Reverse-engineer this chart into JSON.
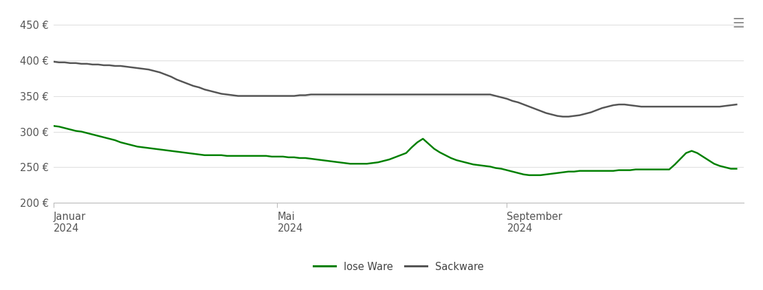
{
  "ylim": [
    200,
    460
  ],
  "yticks": [
    200,
    250,
    300,
    350,
    400,
    450
  ],
  "ytick_labels": [
    "200 €",
    "250 €",
    "300 €",
    "350 €",
    "400 €",
    "450 €"
  ],
  "lose_ware_color": "#008000",
  "sackware_color": "#555555",
  "background_color": "#ffffff",
  "grid_color": "#e0e0e0",
  "legend_labels": [
    "lose Ware",
    "Sackware"
  ],
  "lose_ware_x": [
    0,
    3,
    6,
    9,
    12,
    15,
    18,
    21,
    24,
    27,
    30,
    33,
    36,
    39,
    42,
    45,
    48,
    51,
    54,
    57,
    60,
    63,
    66,
    69,
    72,
    75,
    78,
    81,
    84,
    87,
    90,
    93,
    96,
    99,
    102,
    105,
    108,
    111,
    114,
    117,
    120,
    123,
    126,
    129,
    132,
    135,
    138,
    141,
    144,
    147,
    150,
    153,
    156,
    159,
    162,
    165,
    168,
    171,
    174,
    177,
    180,
    183,
    186,
    189,
    192,
    195,
    198,
    201,
    204,
    207,
    210,
    213,
    216,
    219,
    222,
    225,
    228,
    231,
    234,
    237,
    240,
    243,
    246,
    249,
    252,
    255,
    258,
    261,
    264,
    267,
    270,
    273,
    276,
    279,
    282,
    285,
    288,
    291,
    294,
    297,
    300,
    303,
    306,
    309,
    312,
    315,
    318,
    321,
    324,
    327,
    330,
    333,
    336,
    339,
    342,
    345,
    348,
    351,
    354,
    357,
    360,
    363,
    366
  ],
  "lose_ware_y": [
    308,
    307,
    305,
    303,
    301,
    300,
    298,
    296,
    294,
    292,
    290,
    288,
    285,
    283,
    281,
    279,
    278,
    277,
    276,
    275,
    274,
    273,
    272,
    271,
    270,
    269,
    268,
    267,
    267,
    267,
    267,
    266,
    266,
    266,
    266,
    266,
    266,
    266,
    266,
    265,
    265,
    265,
    264,
    264,
    263,
    263,
    262,
    261,
    260,
    259,
    258,
    257,
    256,
    255,
    255,
    255,
    255,
    256,
    257,
    259,
    261,
    264,
    267,
    270,
    278,
    285,
    290,
    283,
    276,
    271,
    267,
    263,
    260,
    258,
    256,
    254,
    253,
    252,
    251,
    249,
    248,
    246,
    244,
    242,
    240,
    239,
    239,
    239,
    240,
    241,
    242,
    243,
    244,
    244,
    245,
    245,
    245,
    245,
    245,
    245,
    245,
    246,
    246,
    246,
    247,
    247,
    247,
    247,
    247,
    247,
    247,
    254,
    262,
    270,
    273,
    270,
    265,
    260,
    255,
    252,
    250,
    248,
    248
  ],
  "sackware_x": [
    0,
    3,
    6,
    9,
    12,
    15,
    18,
    21,
    24,
    27,
    30,
    33,
    36,
    39,
    42,
    45,
    48,
    51,
    54,
    57,
    60,
    63,
    66,
    69,
    72,
    75,
    78,
    81,
    84,
    87,
    90,
    93,
    96,
    99,
    102,
    105,
    108,
    111,
    114,
    117,
    120,
    123,
    126,
    129,
    132,
    135,
    138,
    141,
    144,
    147,
    150,
    153,
    156,
    159,
    162,
    165,
    168,
    171,
    174,
    177,
    180,
    183,
    186,
    189,
    192,
    195,
    198,
    201,
    204,
    207,
    210,
    213,
    216,
    219,
    222,
    225,
    228,
    231,
    234,
    237,
    240,
    243,
    246,
    249,
    252,
    255,
    258,
    261,
    264,
    267,
    270,
    273,
    276,
    279,
    282,
    285,
    288,
    291,
    294,
    297,
    300,
    303,
    306,
    309,
    312,
    315,
    318,
    321,
    324,
    327,
    330,
    333,
    336,
    339,
    342,
    345,
    348,
    351,
    354,
    357,
    360,
    363,
    366
  ],
  "sackware_y": [
    398,
    397,
    397,
    396,
    396,
    395,
    395,
    394,
    394,
    393,
    393,
    392,
    392,
    391,
    390,
    389,
    388,
    387,
    385,
    383,
    380,
    377,
    373,
    370,
    367,
    364,
    362,
    359,
    357,
    355,
    353,
    352,
    351,
    350,
    350,
    350,
    350,
    350,
    350,
    350,
    350,
    350,
    350,
    350,
    351,
    351,
    352,
    352,
    352,
    352,
    352,
    352,
    352,
    352,
    352,
    352,
    352,
    352,
    352,
    352,
    352,
    352,
    352,
    352,
    352,
    352,
    352,
    352,
    352,
    352,
    352,
    352,
    352,
    352,
    352,
    352,
    352,
    352,
    352,
    350,
    348,
    346,
    343,
    341,
    338,
    335,
    332,
    329,
    326,
    324,
    322,
    321,
    321,
    322,
    323,
    325,
    327,
    330,
    333,
    335,
    337,
    338,
    338,
    337,
    336,
    335,
    335,
    335,
    335,
    335,
    335,
    335,
    335,
    335,
    335,
    335,
    335,
    335,
    335,
    335,
    336,
    337,
    338
  ]
}
